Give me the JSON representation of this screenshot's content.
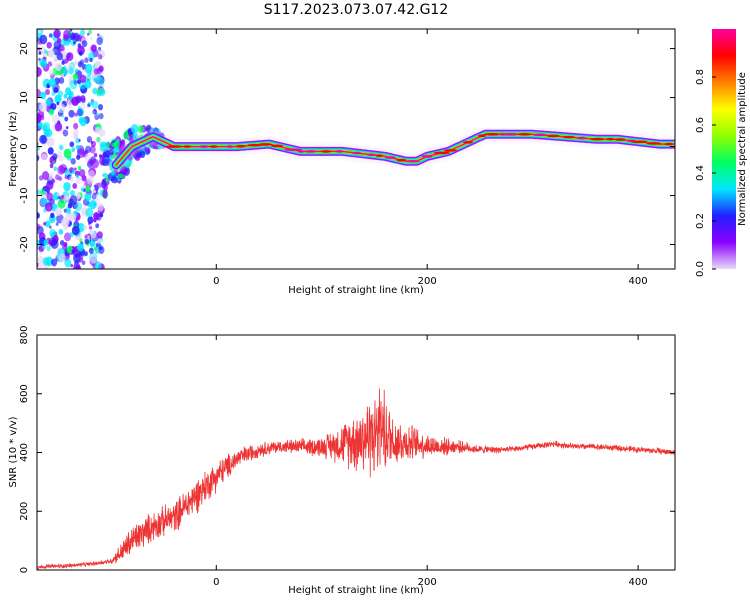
{
  "title": "S117.2023.073.07.42.G12",
  "colors": {
    "snr_line": "#ee3333",
    "frame": "#000000"
  },
  "chart_data": [
    {
      "type": "heatmap",
      "xlabel": "Height of straight line (km)",
      "ylabel": "Frequency (Hz)",
      "xlim": [
        -170,
        435
      ],
      "ylim": [
        -25,
        24
      ],
      "xticks": [
        "0",
        "200",
        "400"
      ],
      "xtick_values": [
        0,
        200,
        400
      ],
      "yticks": [
        "-20",
        "-10",
        "0",
        "10",
        "20"
      ],
      "ytick_values": [
        -20,
        -10,
        0,
        10,
        20
      ],
      "colorbar": {
        "label": "Normalized spectral amplitude",
        "ticks": [
          "0.0",
          "0.2",
          "0.4",
          "0.6",
          "0.8"
        ],
        "tick_values": [
          0.0,
          0.2,
          0.4,
          0.6,
          0.8
        ],
        "range": [
          0,
          1
        ],
        "colormap": [
          "#e8d8f8",
          "#8c00ff",
          "#2020ff",
          "#00e8ff",
          "#00ff60",
          "#90ff00",
          "#ffff00",
          "#ff8000",
          "#ff0000",
          "#ff00a0"
        ]
      },
      "ridge": {
        "x": [
          -100,
          -80,
          -60,
          -40,
          -20,
          0,
          20,
          50,
          80,
          100,
          120,
          140,
          160,
          180,
          190,
          200,
          220,
          240,
          255,
          270,
          300,
          330,
          360,
          380,
          400,
          420,
          435
        ],
        "y": [
          -5,
          0,
          2,
          0,
          0,
          0,
          0,
          0.5,
          -1,
          -1,
          -1,
          -1.5,
          -2,
          -3,
          -3,
          -2,
          -1,
          1,
          2.5,
          2.5,
          2.5,
          2,
          1.5,
          1.5,
          1,
          0.5,
          0.5
        ]
      }
    },
    {
      "type": "line",
      "xlabel": "Height of straight line (km)",
      "ylabel": "SNR (10 * v/v)",
      "xlim": [
        -170,
        435
      ],
      "ylim": [
        0,
        800
      ],
      "xticks": [
        "0",
        "200",
        "400"
      ],
      "xtick_values": [
        0,
        200,
        400
      ],
      "yticks": [
        "0",
        "200",
        "400",
        "600",
        "800"
      ],
      "ytick_values": [
        0,
        200,
        400,
        600,
        800
      ],
      "series": [
        {
          "color": "#ee3333",
          "x": [
            -170,
            -140,
            -120,
            -100,
            -90,
            -80,
            -60,
            -40,
            -20,
            0,
            20,
            40,
            60,
            80,
            100,
            120,
            140,
            155,
            170,
            190,
            210,
            230,
            250,
            280,
            300,
            320,
            340,
            360,
            380,
            400,
            420,
            435
          ],
          "y": [
            10,
            15,
            20,
            30,
            60,
            100,
            150,
            180,
            250,
            320,
            380,
            410,
            420,
            420,
            420,
            430,
            450,
            470,
            440,
            430,
            420,
            420,
            410,
            410,
            420,
            430,
            420,
            420,
            415,
            410,
            405,
            400
          ],
          "amplitude": [
            8,
            8,
            8,
            10,
            40,
            60,
            60,
            60,
            70,
            60,
            40,
            30,
            25,
            30,
            40,
            80,
            150,
            180,
            100,
            60,
            40,
            25,
            15,
            12,
            12,
            12,
            12,
            12,
            12,
            12,
            12,
            12
          ]
        }
      ]
    }
  ]
}
